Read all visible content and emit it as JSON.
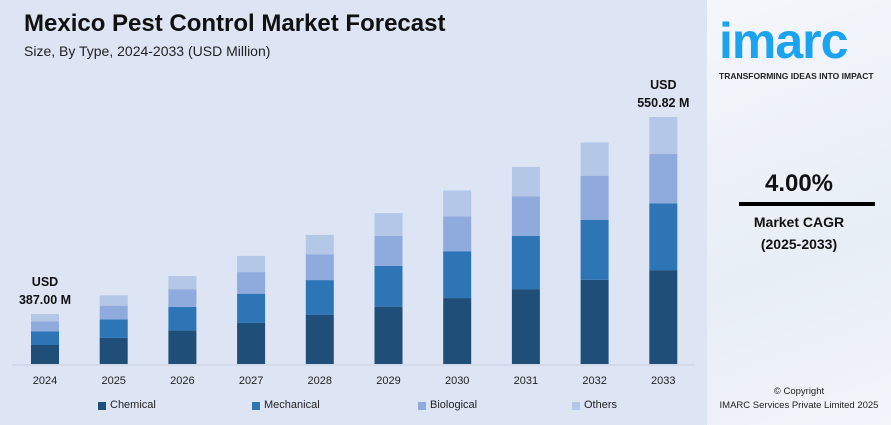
{
  "chart_data": {
    "type": "bar",
    "stacked": true,
    "title": "Mexico Pest Control Market Forecast",
    "subtitle": "Size, By Type, 2024-2033 (USD Million)",
    "categories": [
      "2024",
      "2025",
      "2026",
      "2027",
      "2028",
      "2029",
      "2030",
      "2031",
      "2032",
      "2033"
    ],
    "totals": [
      387.0,
      402.48,
      418.58,
      435.32,
      452.74,
      470.85,
      489.68,
      509.27,
      529.64,
      550.82
    ],
    "series": [
      {
        "name": "Chemical",
        "share": 0.38,
        "color": "#1f4e79"
      },
      {
        "name": "Mechanical",
        "share": 0.27,
        "color": "#2e75b6"
      },
      {
        "name": "Biological",
        "share": 0.2,
        "color": "#8faadc"
      },
      {
        "name": "Others",
        "share": 0.15,
        "color": "#b4c7e7"
      }
    ],
    "annotations": [
      {
        "category": "2024",
        "line1": "USD",
        "line2": "387.00 M"
      },
      {
        "category": "2033",
        "line1": "USD",
        "line2": "550.82 M"
      }
    ],
    "grid": false,
    "legend": "bottom"
  },
  "sidebar": {
    "logo": "imarc",
    "tagline": "TRANSFORMING IDEAS INTO IMPACT",
    "cagr_value": "4.00%",
    "cagr_label": "Market CAGR",
    "cagr_period": "(2025-2033)",
    "copyright": "© Copyright",
    "company": "IMARC Services Private Limited 2025"
  }
}
